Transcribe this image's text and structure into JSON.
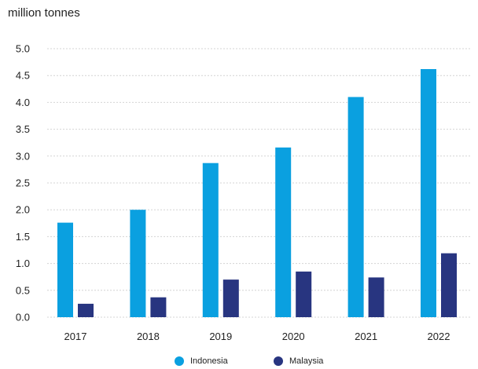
{
  "unit_label": "million tonnes",
  "chart_data": {
    "type": "bar",
    "ylabel": "million tonnes",
    "categories": [
      "2017",
      "2018",
      "2019",
      "2020",
      "2021",
      "2022"
    ],
    "ylim": [
      0,
      5.0
    ],
    "yticks": [
      "0.0",
      "0.5",
      "1.0",
      "1.5",
      "2.0",
      "2.5",
      "3.0",
      "3.5",
      "4.0",
      "4.5",
      "5.0"
    ],
    "grid": true,
    "legend_position": "bottom",
    "series": [
      {
        "name": "Indonesia",
        "color": "#0aa0e0",
        "values": [
          1.76,
          2.0,
          2.87,
          3.16,
          4.1,
          4.62
        ]
      },
      {
        "name": "Malaysia",
        "color": "#283580",
        "values": [
          0.25,
          0.37,
          0.7,
          0.85,
          0.74,
          1.19
        ]
      }
    ]
  }
}
